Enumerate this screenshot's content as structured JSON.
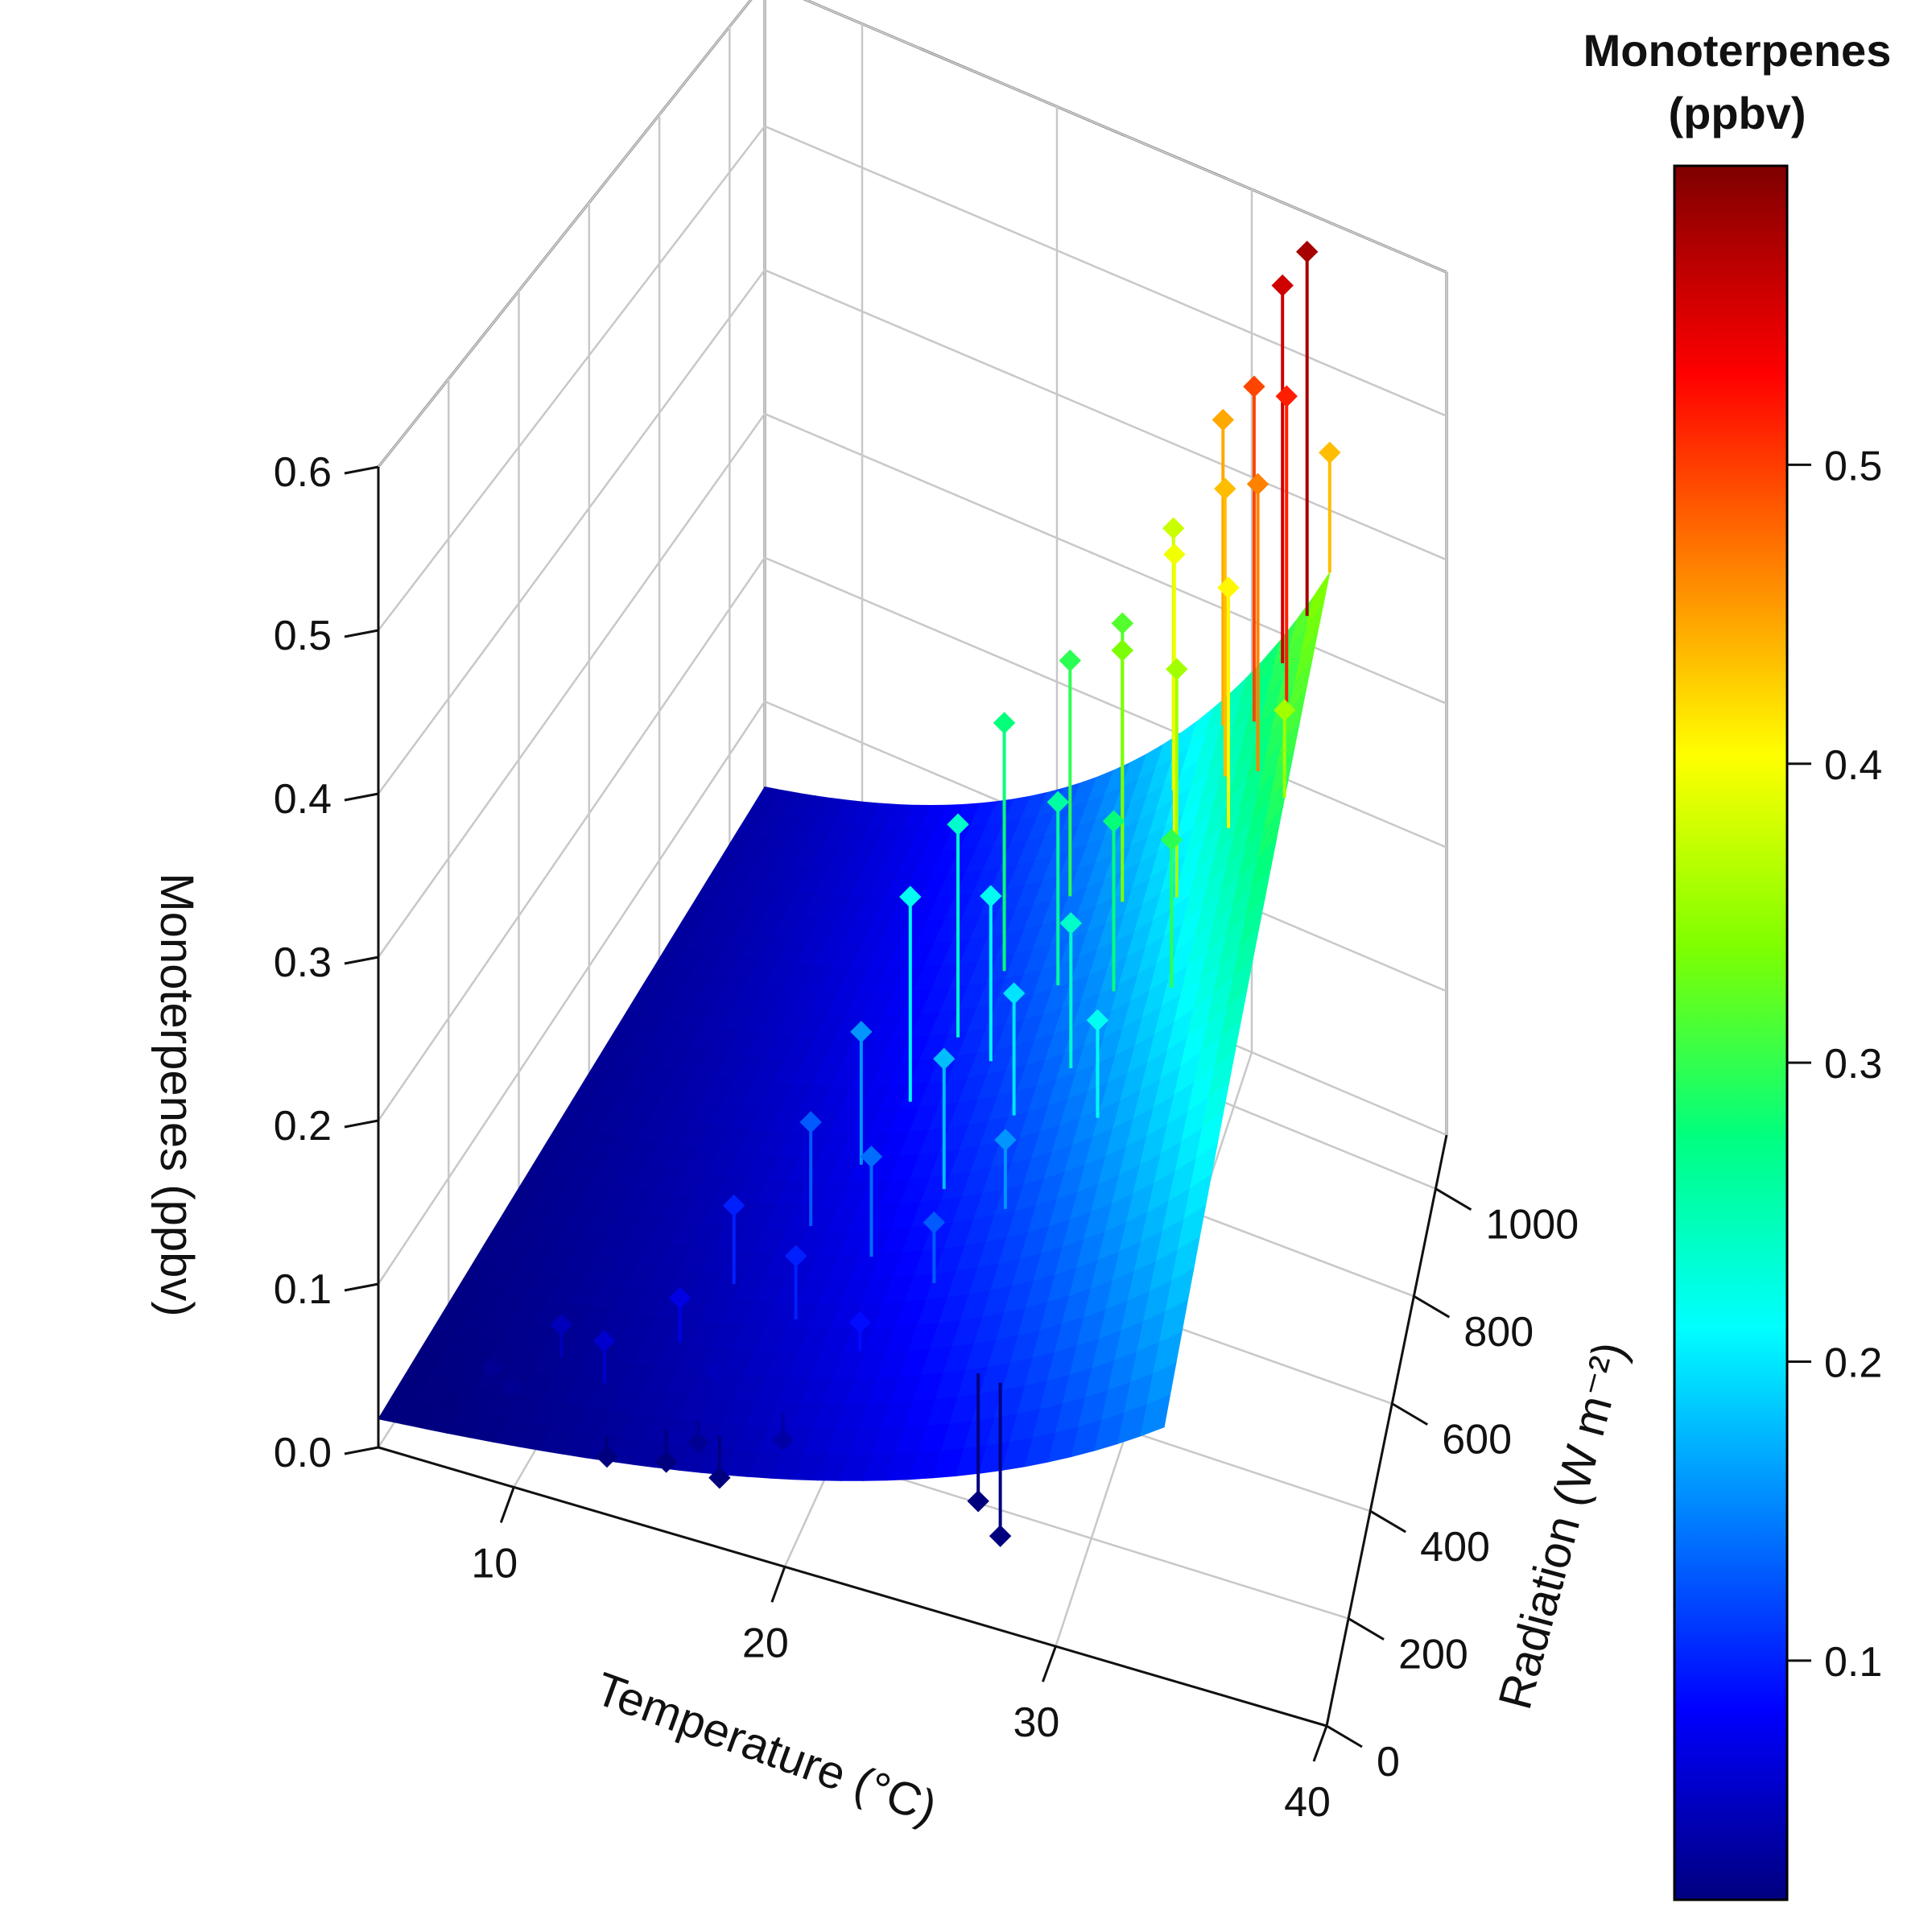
{
  "chart_data": {
    "type": "scatter",
    "subtype": "3d-scatter-with-fitted-surface",
    "title": "",
    "axes": {
      "x": {
        "label": "Temperature (°C)",
        "range": [
          5,
          40
        ],
        "ticks": [
          10,
          20,
          30,
          40
        ]
      },
      "y": {
        "label": "Radiation (W m⁻²)",
        "range": [
          0,
          1100
        ],
        "ticks": [
          0,
          200,
          400,
          600,
          800,
          1000
        ]
      },
      "z": {
        "label": "Monoterpenes (ppbv)",
        "range": [
          0,
          0.6
        ],
        "ticks": [
          "0.0",
          "0.1",
          "0.2",
          "0.3",
          "0.4",
          "0.5",
          "0.6"
        ]
      }
    },
    "colorbar": {
      "title_line1": "Monoterpenes",
      "title_line2": "(ppbv)",
      "range": [
        0.02,
        0.6
      ],
      "ticks": [
        "0.1",
        "0.2",
        "0.3",
        "0.4",
        "0.5"
      ],
      "palette": [
        "#00007f",
        "#0000ff",
        "#007fff",
        "#00ffff",
        "#00ff7f",
        "#7fff00",
        "#ffff00",
        "#ff7f00",
        "#ff0000",
        "#7f0000"
      ]
    },
    "surface": {
      "model": "z = a * exp(b*T) * (1 + c*R)",
      "a": 0.012,
      "b": 0.075,
      "c": 0.0012,
      "x_range": [
        5,
        34
      ],
      "y_range": [
        0,
        1100
      ]
    },
    "points": [
      {
        "x": 7,
        "y": 50,
        "z": 0.02
      },
      {
        "x": 8,
        "y": 100,
        "z": 0.03
      },
      {
        "x": 9,
        "y": 80,
        "z": 0.03
      },
      {
        "x": 10,
        "y": 150,
        "z": 0.05
      },
      {
        "x": 11,
        "y": 60,
        "z": 0.03
      },
      {
        "x": 12,
        "y": 120,
        "z": 0.06
      },
      {
        "x": 13,
        "y": 40,
        "z": 0.02
      },
      {
        "x": 14,
        "y": 200,
        "z": 0.07
      },
      {
        "x": 15,
        "y": 60,
        "z": 0.02
      },
      {
        "x": 15,
        "y": 300,
        "z": 0.1
      },
      {
        "x": 16,
        "y": 80,
        "z": 0.03
      },
      {
        "x": 16,
        "y": 150,
        "z": 0.05
      },
      {
        "x": 17,
        "y": 400,
        "z": 0.13
      },
      {
        "x": 17,
        "y": 60,
        "z": 0.02
      },
      {
        "x": 18,
        "y": 250,
        "z": 0.1
      },
      {
        "x": 18,
        "y": 500,
        "z": 0.16
      },
      {
        "x": 19,
        "y": 100,
        "z": 0.04
      },
      {
        "x": 19,
        "y": 600,
        "z": 0.22
      },
      {
        "x": 20,
        "y": 350,
        "z": 0.14
      },
      {
        "x": 20,
        "y": 700,
        "z": 0.24
      },
      {
        "x": 21,
        "y": 200,
        "z": 0.09
      },
      {
        "x": 21,
        "y": 800,
        "z": 0.28
      },
      {
        "x": 22,
        "y": 450,
        "z": 0.18
      },
      {
        "x": 22,
        "y": 650,
        "z": 0.22
      },
      {
        "x": 23,
        "y": 300,
        "z": 0.13
      },
      {
        "x": 23,
        "y": 900,
        "z": 0.3
      },
      {
        "x": 24,
        "y": 550,
        "z": 0.2
      },
      {
        "x": 24,
        "y": 750,
        "z": 0.26
      },
      {
        "x": 25,
        "y": 400,
        "z": 0.16
      },
      {
        "x": 25,
        "y": 950,
        "z": 0.32
      },
      {
        "x": 26,
        "y": 600,
        "z": 0.24
      },
      {
        "x": 26,
        "y": 850,
        "z": 0.34
      },
      {
        "x": 27,
        "y": 700,
        "z": 0.28
      },
      {
        "x": 27,
        "y": 1000,
        "z": 0.38
      },
      {
        "x": 28,
        "y": 500,
        "z": 0.22
      },
      {
        "x": 28,
        "y": 900,
        "z": 0.4
      },
      {
        "x": 29,
        "y": 800,
        "z": 0.36
      },
      {
        "x": 29,
        "y": 1050,
        "z": 0.45
      },
      {
        "x": 30,
        "y": 650,
        "z": 0.3
      },
      {
        "x": 30,
        "y": 950,
        "z": 0.44
      },
      {
        "x": 31,
        "y": 1000,
        "z": 0.5
      },
      {
        "x": 31,
        "y": 850,
        "z": 0.41
      },
      {
        "x": 32,
        "y": 1050,
        "z": 0.56
      },
      {
        "x": 32,
        "y": 900,
        "z": 0.47
      },
      {
        "x": 33,
        "y": 1080,
        "z": 0.58
      },
      {
        "x": 33,
        "y": 950,
        "z": 0.52
      },
      {
        "x": 34,
        "y": 1100,
        "z": 0.44
      },
      {
        "x": 34,
        "y": 800,
        "z": 0.36
      },
      {
        "x": 26,
        "y": 150,
        "z": 0.02
      },
      {
        "x": 27,
        "y": 130,
        "z": 0.01
      }
    ]
  }
}
